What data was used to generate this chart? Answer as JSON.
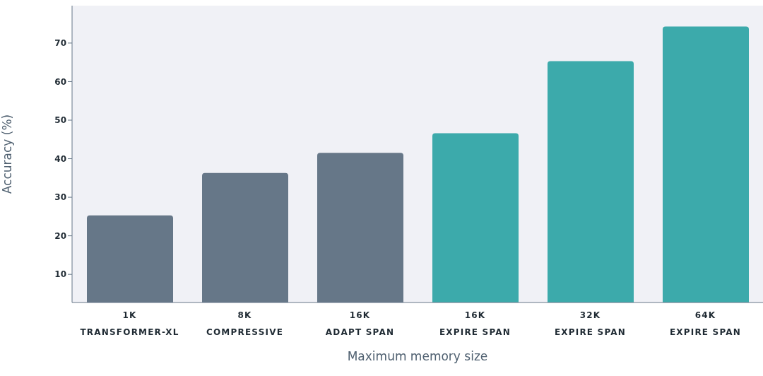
{
  "chart_data": {
    "type": "bar",
    "xlabel": "Maximum memory size",
    "ylabel": "Accuracy (%)",
    "categories": [
      "1K\nTRANSFORMER-XL",
      "8K\nCOMPRESSIVE",
      "16K\nADAPT SPAN",
      "16K\nEXPIRE SPAN",
      "32K\nEXPIRE SPAN",
      "64K\nEXPIRE SPAN"
    ],
    "values": [
      25.3,
      36.3,
      41.5,
      46.6,
      65.3,
      74.3
    ],
    "colors": [
      "#667788",
      "#667788",
      "#667788",
      "#3caaab",
      "#3caaab",
      "#3caaab"
    ],
    "ylim": [
      2.7,
      79.7
    ],
    "yticks": [
      10,
      20,
      30,
      40,
      50,
      60,
      70
    ],
    "grid": false
  }
}
